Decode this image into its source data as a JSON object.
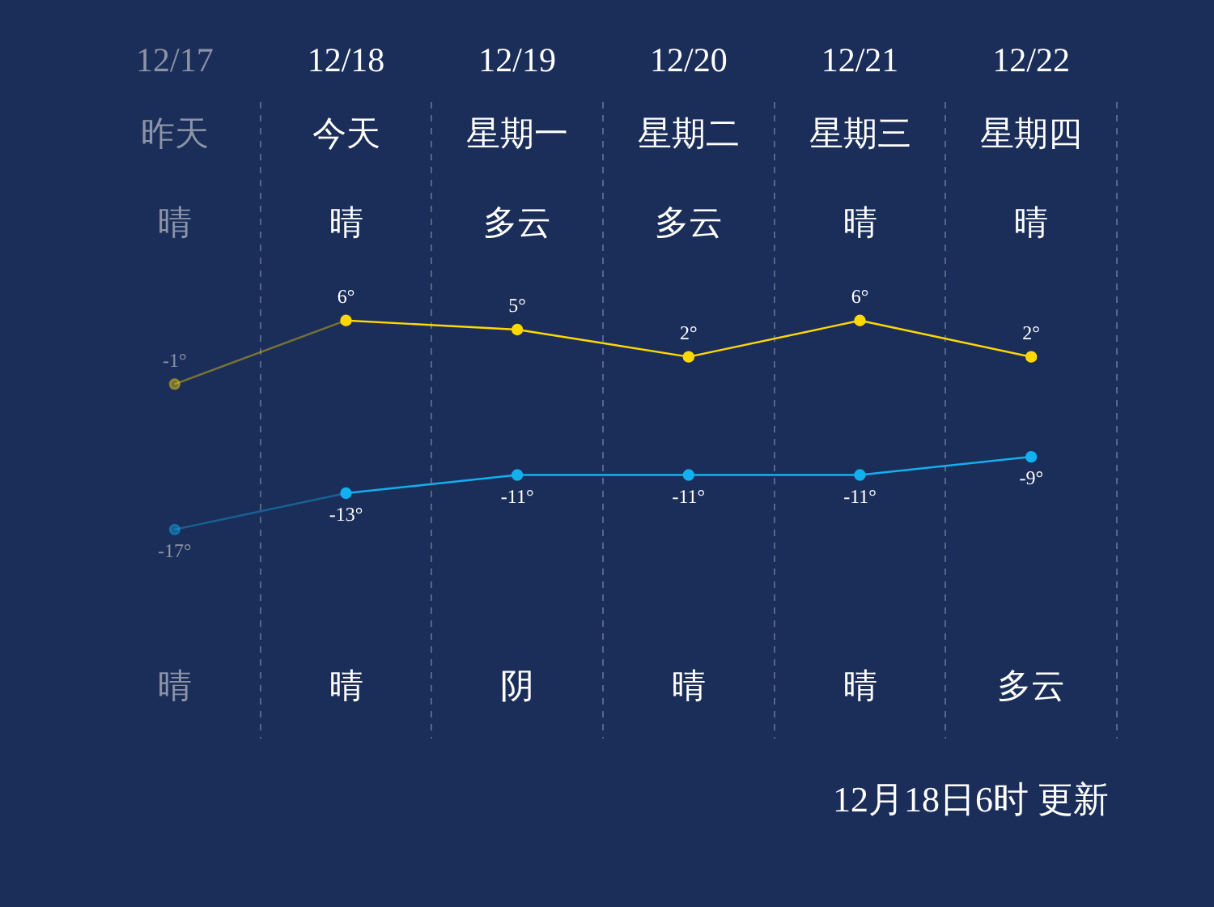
{
  "chart_data": {
    "type": "line",
    "categories": [
      "12/17",
      "12/18",
      "12/19",
      "12/20",
      "12/21",
      "12/22"
    ],
    "series": [
      {
        "color": "#ffd800",
        "values": [
          -1,
          6,
          5,
          2,
          6,
          2
        ],
        "value_labels": [
          "-1°",
          "6°",
          "5°",
          "2°",
          "6°",
          "2°"
        ]
      },
      {
        "color": "#12b0ef",
        "values": [
          -17,
          -13,
          -11,
          -11,
          -11,
          -9
        ],
        "value_labels": [
          "-17°",
          "-13°",
          "-11°",
          "-11°",
          "-11°",
          "-9°"
        ]
      }
    ],
    "marker": "circle",
    "line_style": "solid",
    "grid": "x",
    "legend": false,
    "annotations": [
      "昨天",
      "今天",
      "星期一",
      "星期二",
      "星期三",
      "星期四",
      "晴",
      "晴",
      "多云",
      "多云",
      "晴",
      "晴",
      "晴",
      "晴",
      "阴",
      "晴",
      "晴",
      "多云",
      "12月18日6时 更新"
    ]
  }
}
